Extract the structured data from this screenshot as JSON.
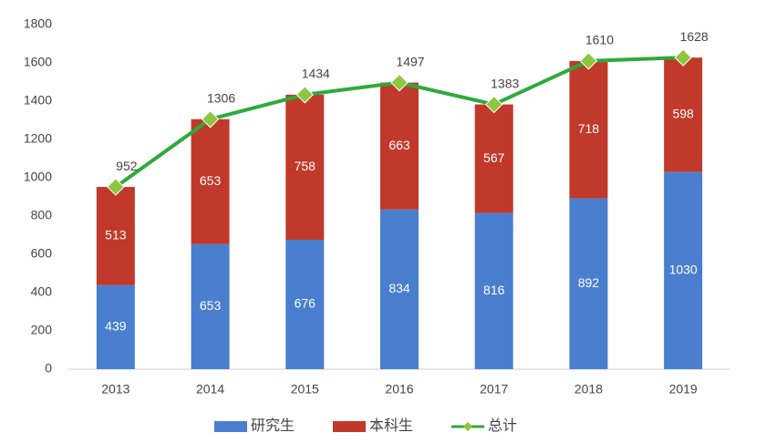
{
  "chart_data": {
    "type": "bar",
    "stacked": true,
    "categories": [
      "2013",
      "2014",
      "2015",
      "2016",
      "2017",
      "2018",
      "2019"
    ],
    "series": [
      {
        "name": "研究生",
        "color": "#4a7fcf",
        "values": [
          439,
          653,
          676,
          834,
          816,
          892,
          1030
        ]
      },
      {
        "name": "本科生",
        "color": "#c0392b",
        "values": [
          513,
          653,
          758,
          663,
          567,
          718,
          598
        ]
      },
      {
        "name": "总计",
        "type": "line",
        "color": "#2eaa3c",
        "marker_color": "#8dc63f",
        "values": [
          952,
          1306,
          1434,
          1497,
          1383,
          1610,
          1628
        ]
      }
    ],
    "ylim": [
      0,
      1800
    ],
    "yticks": [
      0,
      200,
      400,
      600,
      800,
      1000,
      1200,
      1400,
      1600,
      1800
    ],
    "grid": false,
    "legend": "bottom"
  }
}
